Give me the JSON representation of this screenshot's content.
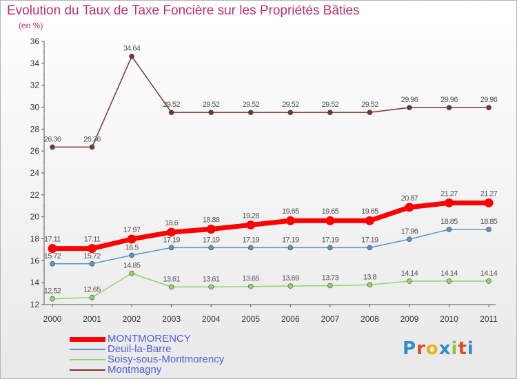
{
  "title": "Evolution du Taux de Taxe Foncière sur les Propriétés Bâties",
  "unit_label": "(en %)",
  "logo": {
    "letters": [
      "P",
      "r",
      "o",
      "x",
      "i",
      "t",
      "i"
    ],
    "colors": [
      "#2f8ecb",
      "#e8492a",
      "#f2b312",
      "#2f8ecb",
      "#8cc63f",
      "#e8492a",
      "#2f8ecb"
    ]
  },
  "chart_data": {
    "type": "line",
    "title": "Evolution du Taux de Taxe Foncière sur les Propriétés Bâties",
    "xlabel": "",
    "ylabel": "(en %)",
    "x": [
      "2000",
      "2001",
      "2002",
      "2003",
      "2004",
      "2005",
      "2006",
      "2007",
      "2008",
      "2009",
      "2010",
      "2011"
    ],
    "ylim": [
      12,
      36
    ],
    "yticks": [
      12,
      14,
      16,
      18,
      20,
      22,
      24,
      26,
      28,
      30,
      32,
      34,
      36
    ],
    "grid": false,
    "legend_position": "bottom-left",
    "series": [
      {
        "name": "MONTMORENCY",
        "color": "#ff0000",
        "width": 7,
        "marker": 6.5,
        "values": [
          17.11,
          17.11,
          17.97,
          18.6,
          18.88,
          19.26,
          19.65,
          19.65,
          19.65,
          20.87,
          21.27,
          21.27
        ],
        "labels": [
          "17.11",
          "17.11",
          "17.97",
          "18.6",
          "18.88",
          "19.26",
          "19.65",
          "19.65",
          "19.65",
          "20.87",
          "21.27",
          "21.27"
        ]
      },
      {
        "name": "Deuil-la-Barre",
        "color": "#5b94c7",
        "width": 1.5,
        "marker": 3.5,
        "values": [
          15.72,
          15.72,
          16.5,
          17.19,
          17.19,
          17.19,
          17.19,
          17.19,
          17.19,
          17.96,
          18.85,
          18.85
        ],
        "labels": [
          "15.72",
          "15.72",
          "16.5",
          "17.19",
          "17.19",
          "17.19",
          "17.19",
          "17.19",
          "17.19",
          "17.96",
          "18.85",
          "18.85"
        ]
      },
      {
        "name": "Soisy-sous-Montmorency",
        "color": "#8fd46a",
        "width": 1.5,
        "marker": 3.5,
        "values": [
          12.52,
          12.65,
          14.85,
          13.61,
          13.61,
          13.65,
          13.69,
          13.73,
          13.8,
          14.14,
          14.14,
          14.14
        ],
        "labels": [
          "12.52",
          "12.65",
          "14.85",
          "13.61",
          "13.61",
          "13.65",
          "13.69",
          "13.73",
          "13.8",
          "14.14",
          "14.14",
          "14.14"
        ]
      },
      {
        "name": "Montmagny",
        "color": "#7a3434",
        "width": 1.5,
        "marker": 3.5,
        "values": [
          26.36,
          26.36,
          34.64,
          29.52,
          29.52,
          29.52,
          29.52,
          29.52,
          29.52,
          29.96,
          29.96,
          29.96
        ],
        "labels": [
          "26.36",
          "26.36",
          "34.64",
          "29.52",
          "29.52",
          "29.52",
          "29.52",
          "29.52",
          "29.52",
          "29.96",
          "29.96",
          "29.96"
        ]
      }
    ]
  }
}
